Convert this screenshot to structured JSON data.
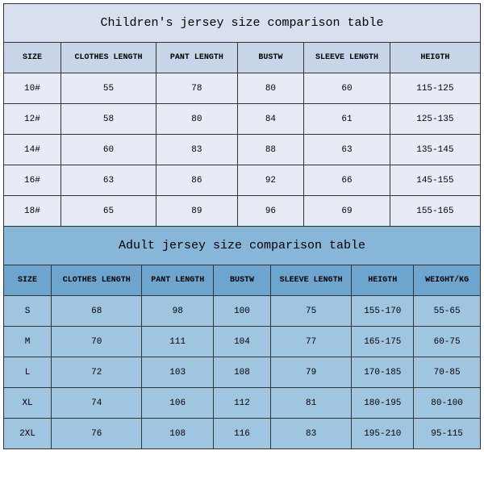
{
  "children": {
    "title": "Children's jersey size comparison table",
    "columns": [
      "SIZE",
      "CLOTHES LENGTH",
      "PANT LENGTH",
      "BUSTW",
      "SLEEVE LENGTH",
      "HEIGTH"
    ],
    "col_widths": [
      "12%",
      "20%",
      "17%",
      "14%",
      "18%",
      "19%"
    ],
    "rows": [
      [
        "10#",
        "55",
        "78",
        "80",
        "60",
        "115-125"
      ],
      [
        "12#",
        "58",
        "80",
        "84",
        "61",
        "125-135"
      ],
      [
        "14#",
        "60",
        "83",
        "88",
        "63",
        "135-145"
      ],
      [
        "16#",
        "63",
        "86",
        "92",
        "66",
        "145-155"
      ],
      [
        "18#",
        "65",
        "89",
        "96",
        "69",
        "155-165"
      ]
    ],
    "colors": {
      "title_bg": "#d8e0f0",
      "header_bg": "#c8d4e8",
      "row_bg": "#e6ebf5",
      "border": "#333333"
    }
  },
  "adult": {
    "title": "Adult jersey size comparison table",
    "columns": [
      "SIZE",
      "CLOTHES LENGTH",
      "PANT LENGTH",
      "BUSTW",
      "SLEEVE LENGTH",
      "HEIGTH",
      "WEIGHT/KG"
    ],
    "col_widths": [
      "10%",
      "19%",
      "15%",
      "12%",
      "17%",
      "13%",
      "14%"
    ],
    "rows": [
      [
        "S",
        "68",
        "98",
        "100",
        "75",
        "155-170",
        "55-65"
      ],
      [
        "M",
        "70",
        "111",
        "104",
        "77",
        "165-175",
        "60-75"
      ],
      [
        "L",
        "72",
        "103",
        "108",
        "79",
        "170-185",
        "70-85"
      ],
      [
        "XL",
        "74",
        "106",
        "112",
        "81",
        "180-195",
        "80-100"
      ],
      [
        "2XL",
        "76",
        "108",
        "116",
        "83",
        "195-210",
        "95-115"
      ]
    ],
    "colors": {
      "title_bg": "#87b6d9",
      "header_bg": "#6ea5cf",
      "row_bg": "#a0c5e0",
      "border": "#333333"
    }
  },
  "fonts": {
    "family": "Courier New, monospace",
    "title_size": 15,
    "header_size": 10,
    "cell_size": 11
  }
}
